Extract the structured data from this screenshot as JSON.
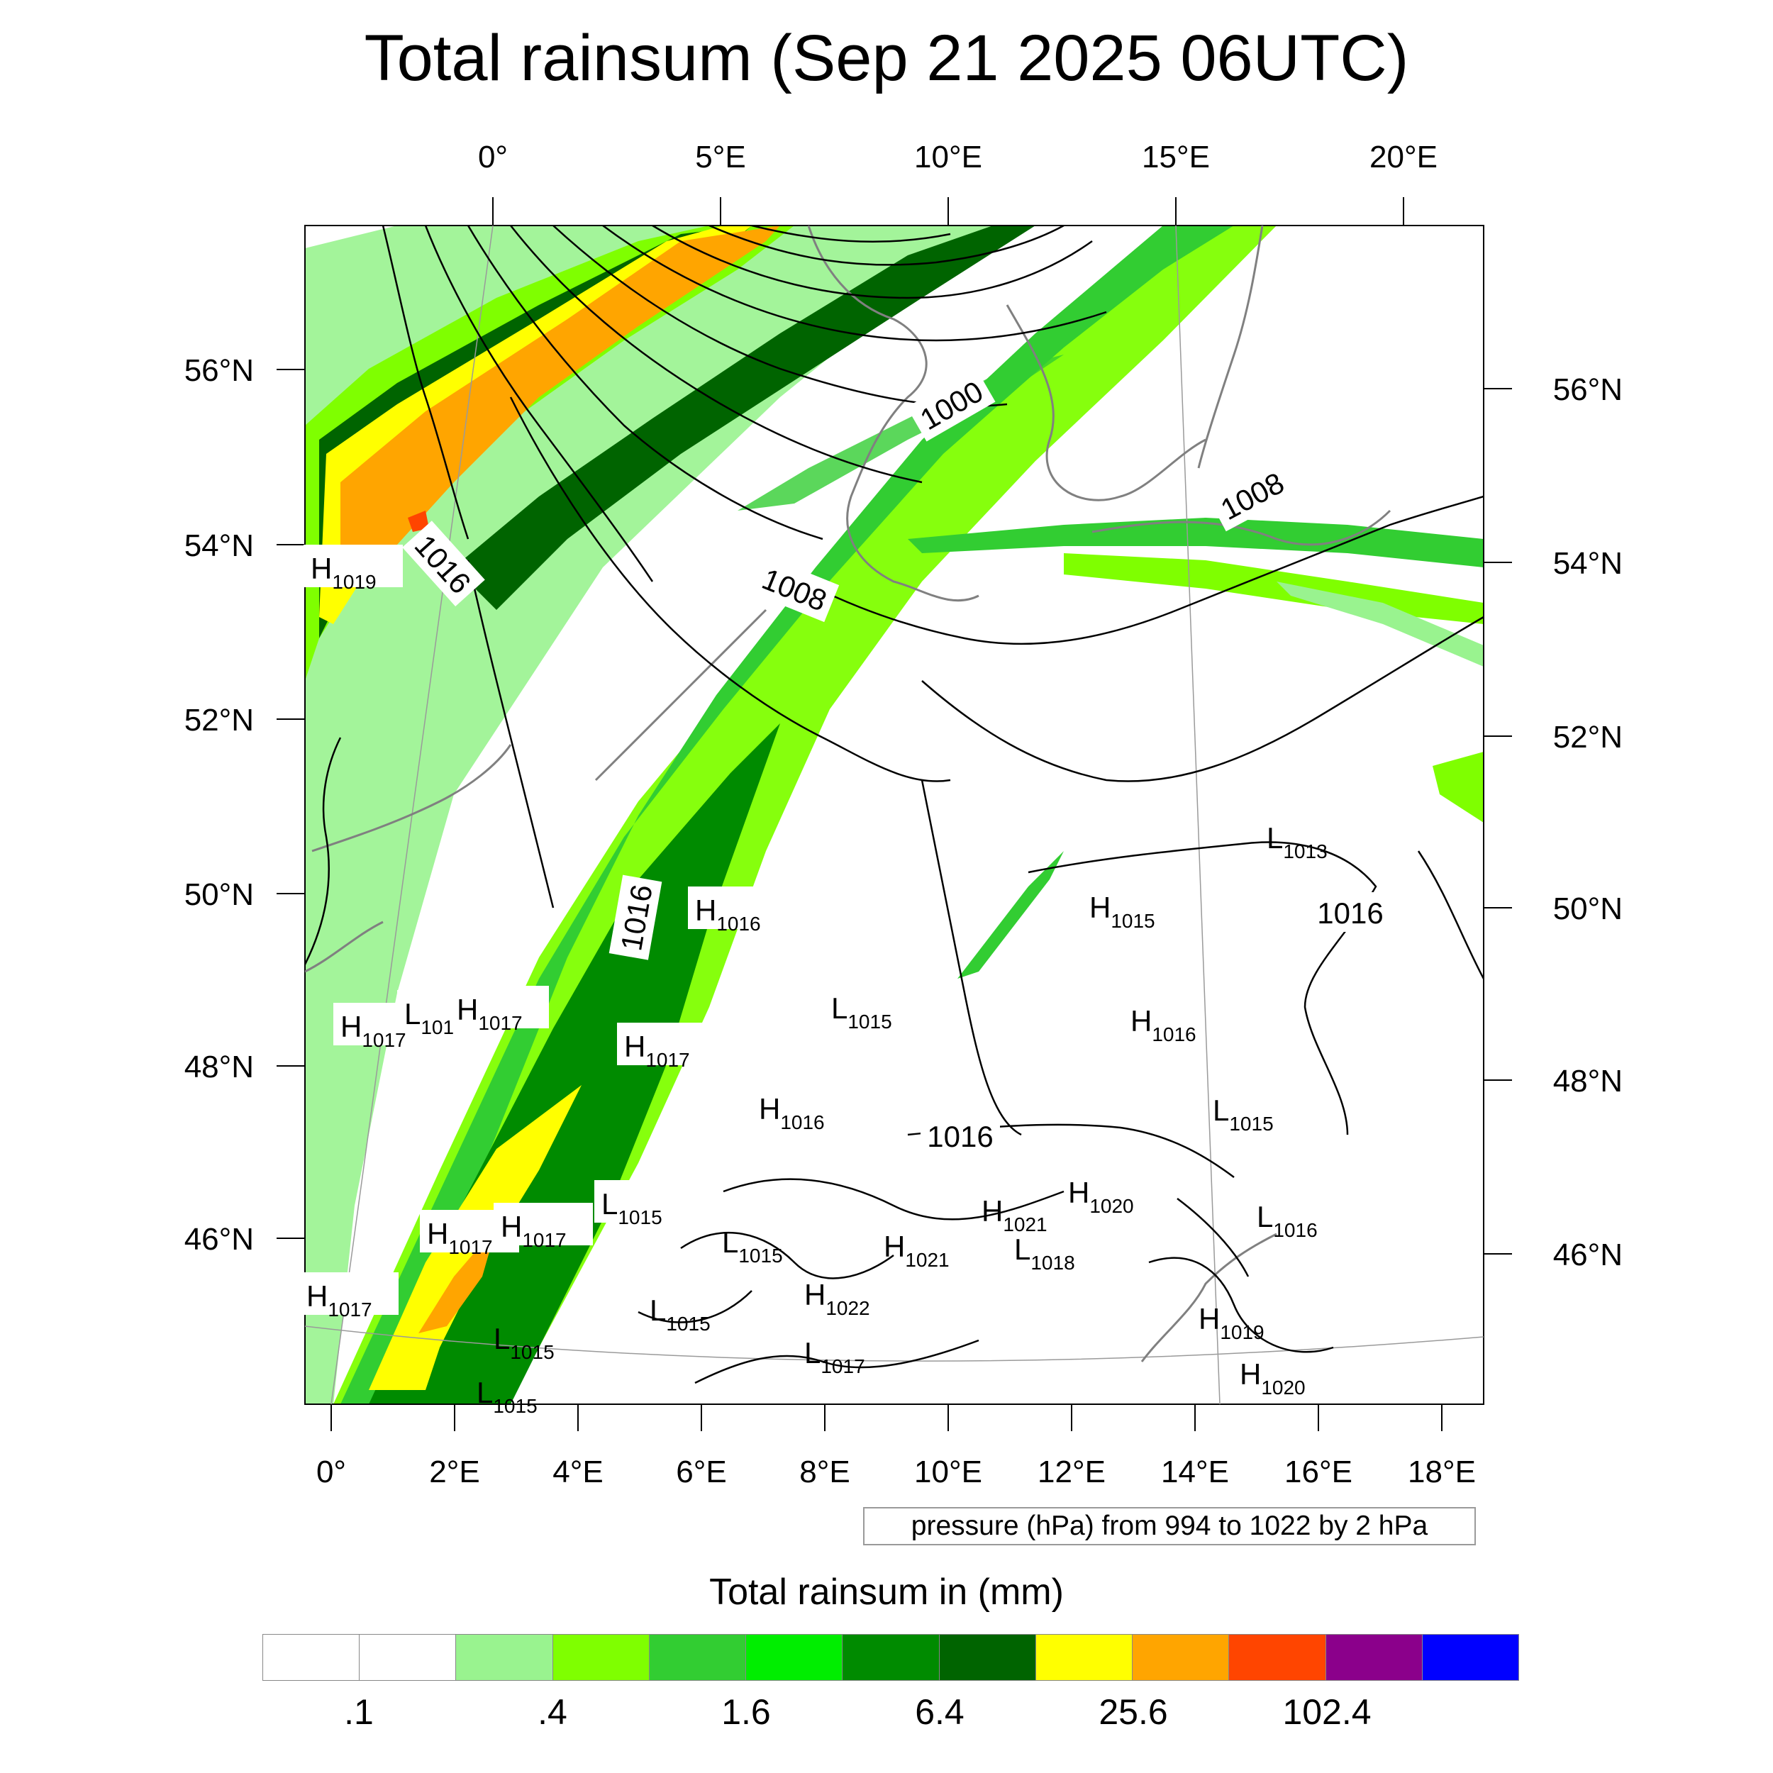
{
  "title": "Total rainsum (Sep 21 2025 06UTC)",
  "top_lon_labels": [
    "0°",
    "5°E",
    "10°E",
    "15°E",
    "20°E"
  ],
  "bottom_lon_labels": [
    "0°",
    "2°E",
    "4°E",
    "6°E",
    "8°E",
    "10°E",
    "12°E",
    "14°E",
    "16°E",
    "18°E"
  ],
  "left_lat_labels": [
    "56°N",
    "54°N",
    "52°N",
    "50°N",
    "48°N",
    "46°N"
  ],
  "right_lat_labels": [
    "56°N",
    "54°N",
    "52°N",
    "50°N",
    "48°N",
    "46°N"
  ],
  "isobar_labels": [
    "1000",
    "1008",
    "1008",
    "1016",
    "1016",
    "1016",
    "1016"
  ],
  "pressure_centers": [
    {
      "type": "H",
      "value": "1019"
    },
    {
      "type": "H",
      "value": "1016"
    },
    {
      "type": "H",
      "value": "1017"
    },
    {
      "type": "L",
      "value": "101"
    },
    {
      "type": "H",
      "value": "1017"
    },
    {
      "type": "H",
      "value": "1017"
    },
    {
      "type": "L",
      "value": "1015"
    },
    {
      "type": "H",
      "value": "1016"
    },
    {
      "type": "L",
      "value": "1015"
    },
    {
      "type": "H",
      "value": "1017"
    },
    {
      "type": "H",
      "value": "1017"
    },
    {
      "type": "H",
      "value": "1017"
    },
    {
      "type": "L",
      "value": "1015"
    },
    {
      "type": "L",
      "value": "1015"
    },
    {
      "type": "L",
      "value": "1015"
    },
    {
      "type": "H",
      "value": "1022"
    },
    {
      "type": "L",
      "value": "1017"
    },
    {
      "type": "H",
      "value": "1021"
    },
    {
      "type": "H",
      "value": "1021"
    },
    {
      "type": "L",
      "value": "1018"
    },
    {
      "type": "H",
      "value": "1020"
    },
    {
      "type": "L",
      "value": "1013"
    },
    {
      "type": "H",
      "value": "1015"
    },
    {
      "type": "H",
      "value": "1016"
    },
    {
      "type": "L",
      "value": "1015"
    },
    {
      "type": "L",
      "value": "1016"
    },
    {
      "type": "H",
      "value": "1019"
    },
    {
      "type": "H",
      "value": "1020"
    },
    {
      "type": "L",
      "value": "1015"
    }
  ],
  "pressure_note": "pressure (hPa) from 994 to 1022 by 2 hPa",
  "legend": {
    "title": "Total rainsum in (mm)",
    "colors": [
      "#ffffff",
      "#ffffff",
      "#99f38f",
      "#7fff00",
      "#32cd32",
      "#00ee00",
      "#008b00",
      "#006400",
      "#ffff00",
      "#ffa500",
      "#ff4500",
      "#8b008b",
      "#0000ff"
    ],
    "labels": [
      ".1",
      ".4",
      "1.6",
      "6.4",
      "25.6",
      "102.4"
    ]
  },
  "colors": {
    "coastline": "#808080",
    "isobar": "#000000",
    "gridline": "#9a9a9a"
  }
}
